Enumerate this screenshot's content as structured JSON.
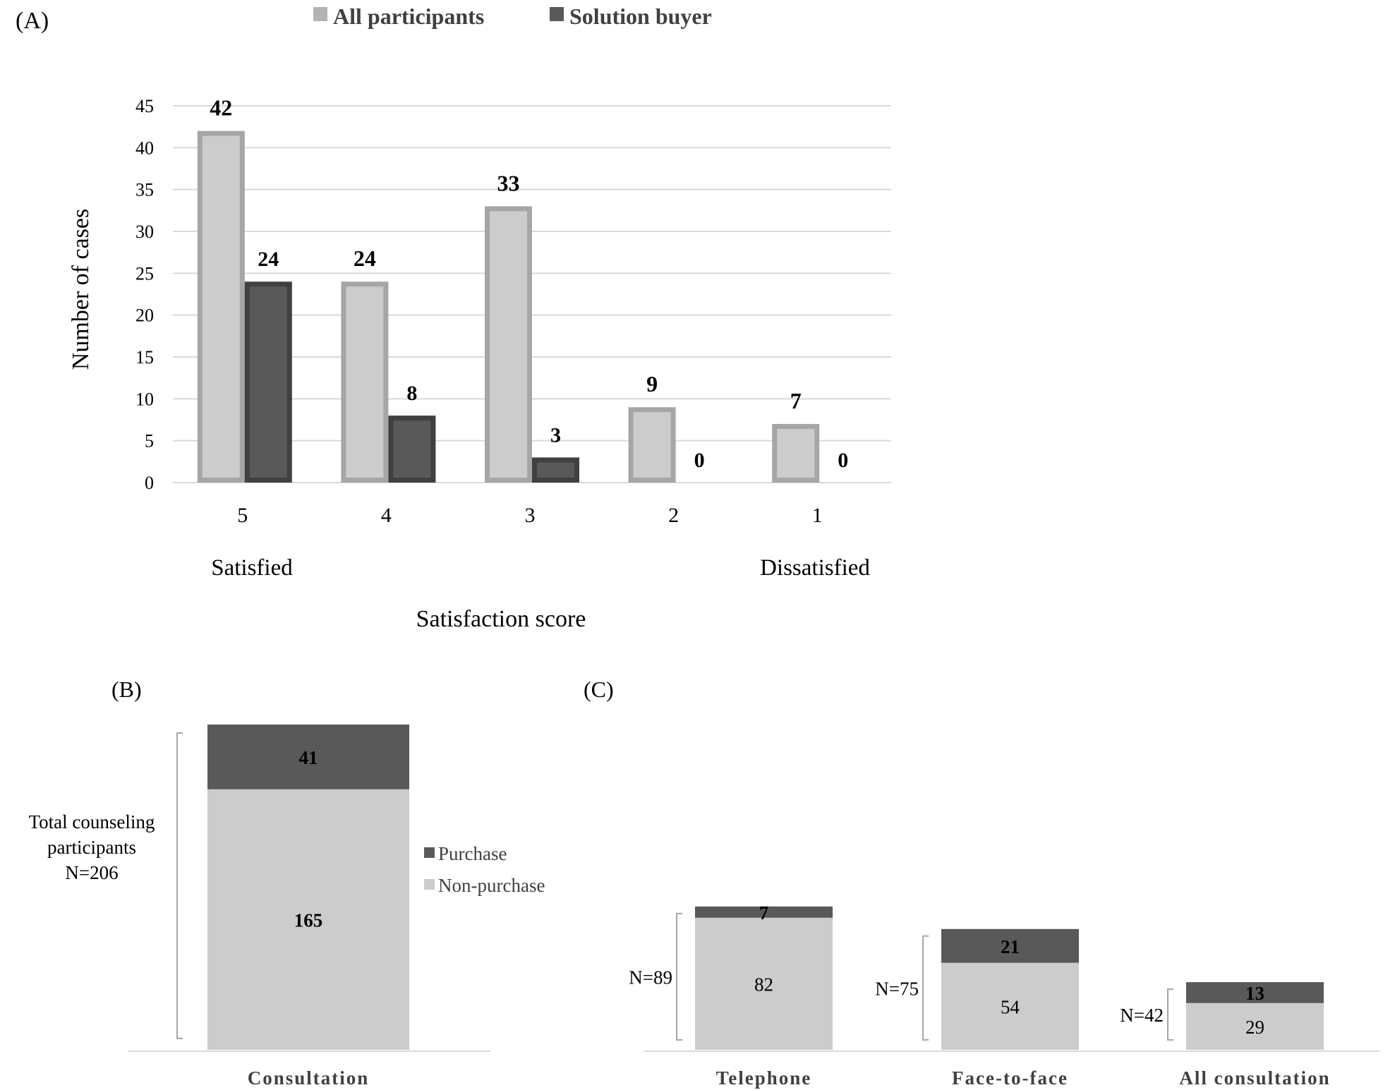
{
  "legend_a": [
    {
      "label": "All participants",
      "color": "#b3b3b3"
    },
    {
      "label": "Solution buyer",
      "color": "#595959"
    }
  ],
  "colors": {
    "light_fill": "#cccccc",
    "light_border": "#a6a6a6",
    "dark_fill": "#595959",
    "dark_border": "#404040",
    "grid": "#d9d9d9",
    "bracket": "#a6a6a6",
    "baseline": "#d9d9d9"
  },
  "chart_data": [
    {
      "type": "bar",
      "panel": "(A)",
      "categories": [
        "5",
        "4",
        "3",
        "2",
        "1"
      ],
      "series": [
        {
          "name": "All participants",
          "values": [
            42,
            24,
            33,
            9,
            7
          ]
        },
        {
          "name": "Solution buyer",
          "values": [
            24,
            8,
            3,
            0,
            0
          ]
        }
      ],
      "xlabel": "Satisfaction score",
      "ylabel": "Number of cases",
      "yticks": [
        "0",
        "5",
        "10",
        "15",
        "20",
        "25",
        "30",
        "35",
        "40",
        "45"
      ],
      "ylim": [
        0,
        45
      ],
      "x_end_labels": {
        "left": "Satisfied",
        "right": "Dissatisfied"
      },
      "grid": true,
      "legend": "top"
    },
    {
      "type": "bar",
      "stacked": true,
      "panel": "(B)",
      "categories": [
        "Consultation"
      ],
      "series": [
        {
          "name": "Non-purchase",
          "values": [
            165
          ]
        },
        {
          "name": "Purchase",
          "values": [
            41
          ]
        }
      ],
      "bracket_label": [
        "Total counseling",
        "participants",
        "N=206"
      ],
      "legend_entries": [
        "Purchase",
        "Non-purchase"
      ],
      "legend": "right"
    },
    {
      "type": "bar",
      "stacked": true,
      "panel": "(C)",
      "categories": [
        "Telephone",
        "Face-to-face",
        "All consultation"
      ],
      "series": [
        {
          "values": [
            82,
            54,
            29
          ]
        },
        {
          "values": [
            7,
            21,
            13
          ]
        }
      ],
      "totals_labels": [
        "N=89",
        "N=75",
        "N=42"
      ]
    }
  ]
}
